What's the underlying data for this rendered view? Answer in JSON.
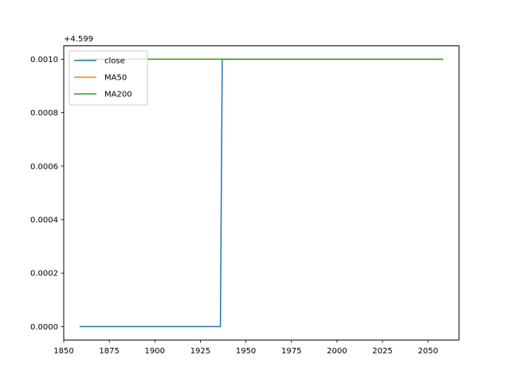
{
  "chart_data": {
    "type": "line",
    "title": "",
    "xlabel": "",
    "ylabel": "",
    "y_offset_label": "+4.599",
    "y_offset": 4.599,
    "xlim": [
      1850,
      2067
    ],
    "ylim": [
      -5e-05,
      0.00105
    ],
    "x_ticks": [
      1850,
      1875,
      1900,
      1925,
      1950,
      1975,
      2000,
      2025,
      2050
    ],
    "x_tick_labels": [
      "1850",
      "1875",
      "1900",
      "1925",
      "1950",
      "1975",
      "2000",
      "2025",
      "2050"
    ],
    "y_ticks": [
      0.0,
      0.0002,
      0.0004,
      0.0006,
      0.0008,
      0.001
    ],
    "y_tick_labels": [
      "0.0000",
      "0.0002",
      "0.0004",
      "0.0006",
      "0.0008",
      "0.0010"
    ],
    "grid": false,
    "legend_position": "top-left",
    "series": [
      {
        "name": "close",
        "color": "#1f77b4",
        "x": [
          1859,
          1936,
          1937,
          2058
        ],
        "y": [
          0.0,
          0.0,
          0.001,
          0.001
        ]
      },
      {
        "name": "MA50",
        "color": "#ff7f0e",
        "x": [
          1859,
          2058
        ],
        "y": [
          0.001,
          0.001
        ]
      },
      {
        "name": "MA200",
        "color": "#2ca02c",
        "x": [
          1859,
          2058
        ],
        "y": [
          0.001,
          0.001
        ]
      }
    ]
  }
}
